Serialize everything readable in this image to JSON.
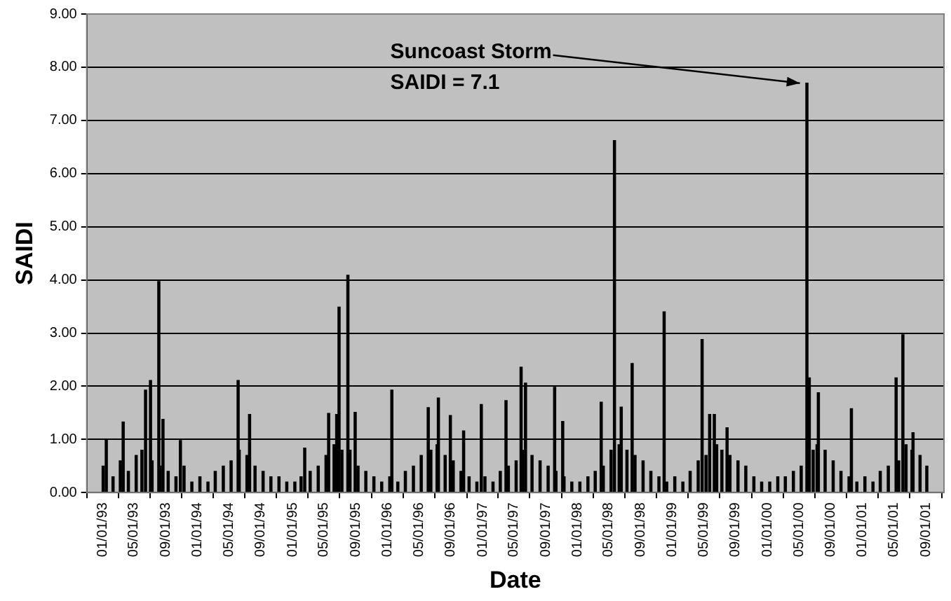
{
  "chart_data": {
    "type": "bar",
    "xlabel": "Date",
    "ylabel": "SAIDI",
    "color": "#000000",
    "grid": "y",
    "legend": false,
    "annotations": [
      {
        "text": "Suncoast Storm\nSAIDI = 7.1",
        "x": "2000-06-01",
        "y": 7.7
      }
    ],
    "xlim": [
      "1993-01-01",
      "2001-09-10"
    ],
    "xticks": [
      {
        "value": "1993-01-01",
        "label": "01/01/93"
      },
      {
        "value": "1993-05-01",
        "label": "05/01/93"
      },
      {
        "value": "1993-09-01",
        "label": "09/01/93"
      },
      {
        "value": "1994-01-01",
        "label": "01/01/94"
      },
      {
        "value": "1994-05-01",
        "label": "05/01/94"
      },
      {
        "value": "1994-09-01",
        "label": "09/01/94"
      },
      {
        "value": "1995-01-01",
        "label": "01/01/95"
      },
      {
        "value": "1995-05-01",
        "label": "05/01/95"
      },
      {
        "value": "1995-09-01",
        "label": "09/01/95"
      },
      {
        "value": "1996-01-01",
        "label": "01/01/96"
      },
      {
        "value": "1996-05-01",
        "label": "05/01/96"
      },
      {
        "value": "1996-09-01",
        "label": "09/01/96"
      },
      {
        "value": "1997-01-01",
        "label": "01/01/97"
      },
      {
        "value": "1997-05-01",
        "label": "05/01/97"
      },
      {
        "value": "1997-09-01",
        "label": "09/01/97"
      },
      {
        "value": "1998-01-01",
        "label": "01/01/98"
      },
      {
        "value": "1998-05-01",
        "label": "05/01/98"
      },
      {
        "value": "1998-09-01",
        "label": "09/01/98"
      },
      {
        "value": "1999-01-01",
        "label": "01/01/99"
      },
      {
        "value": "1999-05-01",
        "label": "05/01/99"
      },
      {
        "value": "1999-09-01",
        "label": "09/01/99"
      },
      {
        "value": "2000-01-01",
        "label": "01/01/00"
      },
      {
        "value": "2000-05-01",
        "label": "05/01/00"
      },
      {
        "value": "2000-09-01",
        "label": "09/01/00"
      },
      {
        "value": "2001-01-01",
        "label": "01/01/01"
      },
      {
        "value": "2001-05-01",
        "label": "05/01/01"
      },
      {
        "value": "2001-09-01",
        "label": "09/01/01"
      }
    ],
    "ylim": [
      0,
      9
    ],
    "yticks": [
      {
        "value": 0,
        "label": "0.00"
      },
      {
        "value": 1,
        "label": "1.00"
      },
      {
        "value": 2,
        "label": "2.00"
      },
      {
        "value": 3,
        "label": "3.00"
      },
      {
        "value": 4,
        "label": "4.00"
      },
      {
        "value": 5,
        "label": "5.00"
      },
      {
        "value": 6,
        "label": "6.00"
      },
      {
        "value": 7,
        "label": "7.00"
      },
      {
        "value": 8,
        "label": "8.00"
      },
      {
        "value": 9,
        "label": "9.00"
      }
    ],
    "x": [
      "1993-01-03",
      "1993-01-15",
      "1993-02-10",
      "1993-03-10",
      "1993-03-21",
      "1993-04-10",
      "1993-05-10",
      "1993-06-01",
      "1993-06-15",
      "1993-07-04",
      "1993-07-10",
      "1993-08-05",
      "1993-08-10",
      "1993-08-21",
      "1993-09-10",
      "1993-10-10",
      "1993-10-27",
      "1993-11-10",
      "1993-12-10",
      "1994-01-10",
      "1994-02-10",
      "1994-03-10",
      "1994-04-10",
      "1994-05-10",
      "1994-06-06",
      "1994-06-10",
      "1994-07-10",
      "1994-07-20",
      "1994-08-10",
      "1994-09-10",
      "1994-10-10",
      "1994-11-10",
      "1994-12-10",
      "1995-01-10",
      "1995-02-03",
      "1995-02-17",
      "1995-03-10",
      "1995-04-10",
      "1995-05-10",
      "1995-05-20",
      "1995-06-10",
      "1995-06-20",
      "1995-06-29",
      "1995-07-10",
      "1995-08-02",
      "1995-08-10",
      "1995-08-30",
      "1995-09-10",
      "1995-10-10",
      "1995-11-10",
      "1995-12-10",
      "1996-01-10",
      "1996-01-18",
      "1996-02-10",
      "1996-03-10",
      "1996-04-10",
      "1996-05-10",
      "1996-06-06",
      "1996-06-16",
      "1996-07-10",
      "1996-07-15",
      "1996-08-10",
      "1996-08-30",
      "1996-09-10",
      "1996-10-10",
      "1996-10-20",
      "1996-11-10",
      "1996-12-10",
      "1996-12-27",
      "1997-01-10",
      "1997-02-10",
      "1997-03-10",
      "1997-04-01",
      "1997-04-10",
      "1997-05-10",
      "1997-05-29",
      "1997-06-03",
      "1997-06-15",
      "1997-07-10",
      "1997-08-10",
      "1997-09-10",
      "1997-10-05",
      "1997-10-10",
      "1997-11-05",
      "1997-11-10",
      "1997-12-10",
      "1998-01-10",
      "1998-02-10",
      "1998-03-10",
      "1998-04-02",
      "1998-04-10",
      "1998-05-10",
      "1998-05-23",
      "1998-06-10",
      "1998-06-18",
      "1998-07-10",
      "1998-07-30",
      "1998-08-10",
      "1998-09-10",
      "1998-10-10",
      "1998-11-10",
      "1998-11-30",
      "1998-12-10",
      "1999-01-10",
      "1999-02-10",
      "1999-03-10",
      "1999-04-10",
      "1999-04-25",
      "1999-05-10",
      "1999-05-24",
      "1999-06-11",
      "1999-06-20",
      "1999-07-10",
      "1999-07-30",
      "1999-08-10",
      "1999-09-10",
      "1999-10-10",
      "1999-11-10",
      "1999-12-10",
      "2000-01-10",
      "2000-02-10",
      "2000-03-10",
      "2000-04-10",
      "2000-05-10",
      "2000-06-01",
      "2000-06-10",
      "2000-06-25",
      "2000-07-10",
      "2000-07-15",
      "2000-08-10",
      "2000-09-10",
      "2000-10-10",
      "2000-11-10",
      "2000-11-19",
      "2000-12-10",
      "2001-01-10",
      "2001-02-10",
      "2001-03-10",
      "2001-04-10",
      "2001-05-10",
      "2001-05-20",
      "2001-06-05",
      "2001-06-17",
      "2001-07-10",
      "2001-07-14",
      "2001-08-10",
      "2001-09-05"
    ],
    "values": [
      0.5,
      1.0,
      0.3,
      0.6,
      1.33,
      0.4,
      0.7,
      0.8,
      1.93,
      2.11,
      0.6,
      3.97,
      0.5,
      1.38,
      0.4,
      0.3,
      0.98,
      0.5,
      0.2,
      0.3,
      0.2,
      0.4,
      0.5,
      0.6,
      2.11,
      0.8,
      0.7,
      1.47,
      0.5,
      0.4,
      0.3,
      0.3,
      0.2,
      0.2,
      0.3,
      0.84,
      0.4,
      0.5,
      0.7,
      1.49,
      0.9,
      1.47,
      3.49,
      0.8,
      4.09,
      0.8,
      1.51,
      0.5,
      0.4,
      0.3,
      0.2,
      0.3,
      1.93,
      0.2,
      0.4,
      0.5,
      0.7,
      1.6,
      0.8,
      0.9,
      1.78,
      0.7,
      1.45,
      0.6,
      0.4,
      1.16,
      0.3,
      0.2,
      1.66,
      0.3,
      0.2,
      0.4,
      1.73,
      0.5,
      0.6,
      2.36,
      0.8,
      2.06,
      0.7,
      0.6,
      0.5,
      1.98,
      0.4,
      1.34,
      0.3,
      0.2,
      0.2,
      0.3,
      0.4,
      1.7,
      0.5,
      0.8,
      6.62,
      0.9,
      1.61,
      0.8,
      2.43,
      0.7,
      0.6,
      0.4,
      0.3,
      3.4,
      0.2,
      0.3,
      0.2,
      0.4,
      0.6,
      2.88,
      0.7,
      1.47,
      1.47,
      0.9,
      0.8,
      1.22,
      0.7,
      0.6,
      0.5,
      0.3,
      0.2,
      0.2,
      0.3,
      0.3,
      0.4,
      0.5,
      7.7,
      2.16,
      0.8,
      0.9,
      1.88,
      0.8,
      0.6,
      0.4,
      0.3,
      1.58,
      0.2,
      0.3,
      0.2,
      0.4,
      0.5,
      2.16,
      0.6,
      2.97,
      0.9,
      0.8,
      1.13,
      0.7,
      0.5
    ]
  }
}
